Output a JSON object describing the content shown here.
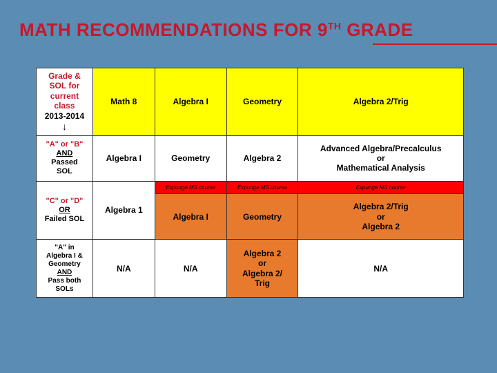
{
  "title": {
    "pre": "MATH RECOMMENDATIONS FOR 9",
    "sup": "TH",
    "post": " GRADE"
  },
  "colors": {
    "page_bg": "#5a8cb4",
    "title_color": "#c8172b",
    "header_yellow": "#ffff00",
    "expunge_red": "#ff0000",
    "orange": "#e87a2e",
    "border": "#333333"
  },
  "header": {
    "label_line1": "Grade &",
    "label_line2": "SOL for",
    "label_line3": "current",
    "label_line4": "class",
    "year": "2013-2014",
    "arrow": "↓",
    "cols": [
      "Math 8",
      "Algebra I",
      "Geometry",
      "Algebra 2/Trig"
    ]
  },
  "row_ab": {
    "label_grade": "\"A\" or \"B\"",
    "label_and": "AND",
    "label_passed": "Passed",
    "label_sol": "SOL",
    "cells": [
      "Algebra I",
      "Geometry",
      "Algebra 2",
      "Advanced Algebra/Precalculus\nor\nMathematical Analysis"
    ]
  },
  "row_cd": {
    "label_grade": "\"C\" or \"D\"",
    "label_or": "OR",
    "label_failed": "Failed SOL",
    "alg1": "Algebra 1",
    "expunge": "Expunge MS course",
    "cells": [
      "Algebra I",
      "Geometry",
      "Algebra 2/Trig\nor\nAlgebra 2"
    ]
  },
  "row_a": {
    "label_l1": "\"A\" in",
    "label_l2": "Algebra I &",
    "label_l3": "Geometry",
    "label_and": "AND",
    "label_l4": "Pass both",
    "label_l5": "SOLs",
    "na": "N/A",
    "cell3": "Algebra 2\nor\nAlgebra 2/\nTrig"
  }
}
